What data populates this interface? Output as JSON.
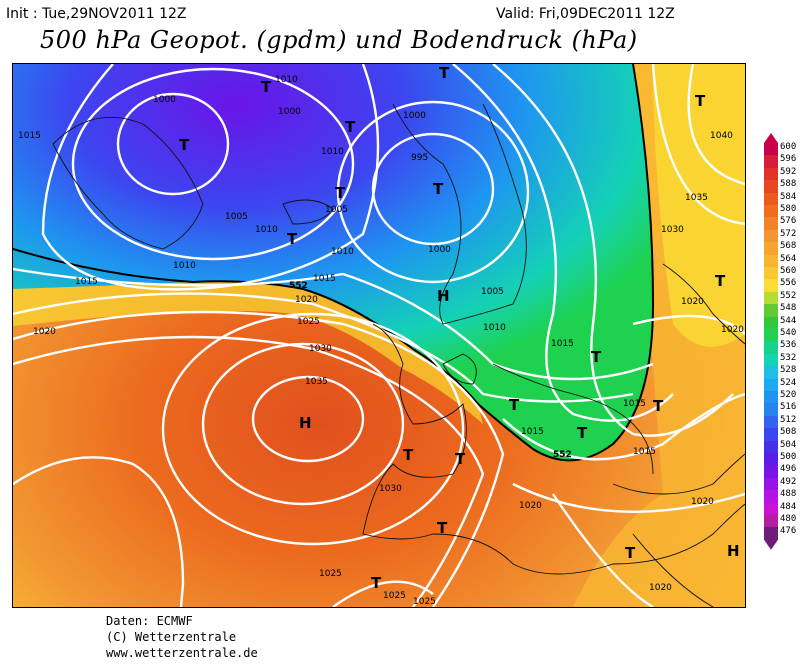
{
  "header": {
    "init": "Init : Tue,29NOV2011 12Z",
    "valid": "Valid: Fri,09DEC2011 12Z",
    "title": "500 hPa Geopot. (gpdm) und Bodendruck (hPa)"
  },
  "credits": [
    "Daten: ECMWF",
    "(C) Wetterzentrale",
    "www.wetterzentrale.de"
  ],
  "legend": {
    "values": [
      "600",
      "596",
      "592",
      "588",
      "584",
      "580",
      "576",
      "572",
      "568",
      "564",
      "560",
      "556",
      "552",
      "548",
      "544",
      "540",
      "536",
      "532",
      "528",
      "524",
      "520",
      "516",
      "512",
      "508",
      "504",
      "500",
      "496",
      "492",
      "488",
      "484",
      "480",
      "476"
    ],
    "colors": [
      "#c8004b",
      "#d41e3c",
      "#e23228",
      "#e8461e",
      "#ec5a1e",
      "#ee6e1e",
      "#f08228",
      "#f29632",
      "#f4a532",
      "#f8b432",
      "#fac832",
      "#fadc32",
      "#b4dc32",
      "#64c832",
      "#32c83c",
      "#1ed250",
      "#14d28c",
      "#14d2b4",
      "#1ebee6",
      "#1eaaf0",
      "#1e96f0",
      "#2882f0",
      "#3264f0",
      "#3c46f0",
      "#4632e6",
      "#5a1ee6",
      "#7814e6",
      "#9614e6",
      "#b414e6",
      "#c814d2",
      "#b41ea0",
      "#6e1e78"
    ]
  },
  "map": {
    "pressure_labels": [
      "1000",
      "1010",
      "1000",
      "1000",
      "1010",
      "1015",
      "995",
      "1005",
      "1005",
      "1010",
      "1010",
      "1015",
      "1010",
      "1015",
      "1000",
      "1005",
      "1020",
      "1020",
      "1025",
      "1010",
      "1015",
      "1030",
      "1035",
      "1015",
      "1015",
      "1015",
      "1030",
      "1020",
      "1025",
      "1025",
      "1025",
      "1035",
      "1040",
      "1030",
      "1020",
      "1020",
      "1020",
      "1020"
    ],
    "geo_labels": [
      "552",
      "552"
    ],
    "high_low_marks": [
      "T",
      "T",
      "T",
      "T",
      "T",
      "T",
      "H",
      "T",
      "H",
      "T",
      "T",
      "T",
      "T",
      "T",
      "T",
      "T",
      "T",
      "T",
      "T",
      "T",
      "H"
    ]
  }
}
